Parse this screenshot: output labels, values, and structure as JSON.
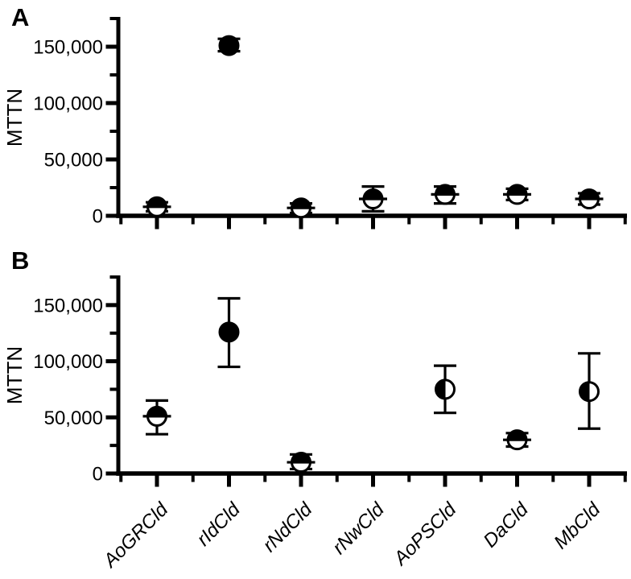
{
  "figure": {
    "background": "#ffffff",
    "foreground": "#000000",
    "panels": [
      {
        "label": "A",
        "ylabel": "MTTN"
      },
      {
        "label": "B",
        "ylabel": "MTTN"
      }
    ]
  },
  "chart_data": [
    {
      "type": "scatter",
      "panel": "A",
      "ylabel": "MTTN",
      "xlabel": "",
      "categories": [
        "AoGRCld",
        "rIdCld",
        "rNdCld",
        "rNwCld",
        "AoPSCld",
        "DaCld",
        "MbCld"
      ],
      "series": [
        {
          "name": "MTTN",
          "values": [
            8000,
            151000,
            7000,
            15000,
            19000,
            19000,
            15000
          ],
          "upper": [
            12000,
            157000,
            11000,
            26000,
            26000,
            24000,
            20000
          ],
          "lower": [
            4000,
            146000,
            2500,
            4000,
            11000,
            14000,
            10000
          ],
          "marker_fill": [
            "half-top",
            "full",
            "half-top",
            "half-top",
            "half-top",
            "half-top",
            "half-top"
          ]
        }
      ],
      "ylim": [
        0,
        175000
      ],
      "ytick_values": [
        0,
        50000,
        100000,
        150000
      ],
      "ytick_labels": [
        "0",
        "50,000",
        "100,000",
        "150,000"
      ],
      "yminor_values": [
        25000,
        75000,
        125000,
        175000
      ],
      "show_x_labels": false,
      "grid": false,
      "legend": null
    },
    {
      "type": "scatter",
      "panel": "B",
      "ylabel": "MTTN",
      "xlabel": "",
      "categories": [
        "AoGRCld",
        "rIdCld",
        "rNdCld",
        "rNwCld",
        "AoPSCld",
        "DaCld",
        "MbCld"
      ],
      "series": [
        {
          "name": "MTTN",
          "values": [
            51000,
            126000,
            10000,
            null,
            75000,
            30000,
            73000
          ],
          "upper": [
            65000,
            156000,
            17000,
            null,
            96000,
            36000,
            107000
          ],
          "lower": [
            35000,
            95000,
            4000,
            null,
            54000,
            24000,
            40000
          ],
          "marker_fill": [
            "half-top",
            "full",
            "half-top",
            null,
            "half-left",
            "half-top",
            "half-left"
          ]
        }
      ],
      "ylim": [
        0,
        175000
      ],
      "ytick_values": [
        0,
        50000,
        100000,
        150000
      ],
      "ytick_labels": [
        "0",
        "50,000",
        "100,000",
        "150,000"
      ],
      "yminor_values": [
        25000,
        75000,
        125000,
        175000
      ],
      "show_x_labels": true,
      "grid": false,
      "legend": null
    }
  ]
}
